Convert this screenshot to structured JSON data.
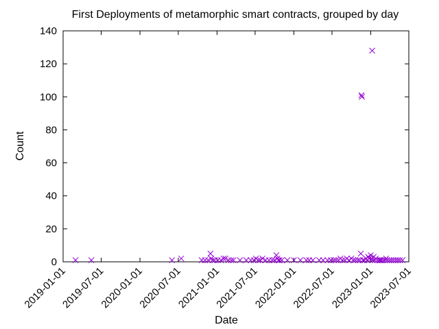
{
  "chart_data": {
    "type": "scatter",
    "title": "First Deployments of metamorphic smart contracts, grouped by day",
    "xlabel": "Date",
    "ylabel": "Count",
    "ylim": [
      0,
      140
    ],
    "yticks": [
      0,
      20,
      40,
      60,
      80,
      100,
      120,
      140
    ],
    "xlim": [
      "2019-01-01",
      "2023-07-01"
    ],
    "xticks": [
      "2019-01-01",
      "2019-07-01",
      "2020-01-01",
      "2020-07-01",
      "2021-01-01",
      "2021-07-01",
      "2022-01-01",
      "2022-07-01",
      "2023-01-01",
      "2023-07-01"
    ],
    "grid": false,
    "legend": "none",
    "marker": "x",
    "marker_color": "#9400D3",
    "series": [
      {
        "points": [
          [
            "2019-03-01",
            1
          ],
          [
            "2019-05-15",
            1
          ],
          [
            "2020-06-01",
            1
          ],
          [
            "2020-07-15",
            2
          ],
          [
            "2020-10-20",
            1
          ],
          [
            "2020-11-05",
            1
          ],
          [
            "2020-11-20",
            1
          ],
          [
            "2020-12-01",
            5
          ],
          [
            "2020-12-05",
            2
          ],
          [
            "2020-12-10",
            1
          ],
          [
            "2020-12-20",
            1
          ],
          [
            "2021-01-05",
            1
          ],
          [
            "2021-01-20",
            1
          ],
          [
            "2021-02-01",
            2
          ],
          [
            "2021-02-10",
            2
          ],
          [
            "2021-02-25",
            1
          ],
          [
            "2021-03-10",
            1
          ],
          [
            "2021-03-20",
            1
          ],
          [
            "2021-04-20",
            1
          ],
          [
            "2021-05-20",
            1
          ],
          [
            "2021-06-10",
            1
          ],
          [
            "2021-06-25",
            1
          ],
          [
            "2021-07-05",
            2
          ],
          [
            "2021-07-15",
            1
          ],
          [
            "2021-07-25",
            1
          ],
          [
            "2021-08-05",
            2
          ],
          [
            "2021-08-20",
            1
          ],
          [
            "2021-09-05",
            1
          ],
          [
            "2021-09-20",
            1
          ],
          [
            "2021-10-01",
            1
          ],
          [
            "2021-10-10",
            4
          ],
          [
            "2021-10-15",
            2
          ],
          [
            "2021-10-20",
            1
          ],
          [
            "2021-10-25",
            1
          ],
          [
            "2021-11-05",
            1
          ],
          [
            "2021-12-01",
            1
          ],
          [
            "2022-01-01",
            1
          ],
          [
            "2022-02-01",
            1
          ],
          [
            "2022-03-01",
            1
          ],
          [
            "2022-03-15",
            1
          ],
          [
            "2022-04-01",
            1
          ],
          [
            "2022-05-01",
            1
          ],
          [
            "2022-05-20",
            1
          ],
          [
            "2022-06-10",
            1
          ],
          [
            "2022-06-25",
            1
          ],
          [
            "2022-07-10",
            1
          ],
          [
            "2022-07-20",
            1
          ],
          [
            "2022-08-01",
            1
          ],
          [
            "2022-08-10",
            2
          ],
          [
            "2022-08-20",
            1
          ],
          [
            "2022-09-01",
            1
          ],
          [
            "2022-09-10",
            2
          ],
          [
            "2022-09-20",
            1
          ],
          [
            "2022-10-01",
            2
          ],
          [
            "2022-10-10",
            1
          ],
          [
            "2022-10-20",
            1
          ],
          [
            "2022-11-01",
            1
          ],
          [
            "2022-11-10",
            1
          ],
          [
            "2022-11-15",
            5
          ],
          [
            "2022-11-18",
            101
          ],
          [
            "2022-11-20",
            100
          ],
          [
            "2022-11-25",
            1
          ],
          [
            "2022-12-01",
            1
          ],
          [
            "2022-12-10",
            2
          ],
          [
            "2022-12-15",
            1
          ],
          [
            "2022-12-20",
            3
          ],
          [
            "2022-12-25",
            2
          ],
          [
            "2023-01-01",
            4
          ],
          [
            "2023-01-05",
            2
          ],
          [
            "2023-01-08",
            128
          ],
          [
            "2023-01-10",
            1
          ],
          [
            "2023-01-15",
            3
          ],
          [
            "2023-01-20",
            1
          ],
          [
            "2023-01-25",
            2
          ],
          [
            "2023-02-01",
            1
          ],
          [
            "2023-02-10",
            1
          ],
          [
            "2023-02-15",
            1
          ],
          [
            "2023-02-20",
            1
          ],
          [
            "2023-03-01",
            1
          ],
          [
            "2023-03-10",
            1
          ],
          [
            "2023-03-15",
            2
          ],
          [
            "2023-03-20",
            1
          ],
          [
            "2023-04-01",
            1
          ],
          [
            "2023-04-10",
            1
          ],
          [
            "2023-04-20",
            1
          ],
          [
            "2023-05-01",
            1
          ],
          [
            "2023-05-10",
            1
          ],
          [
            "2023-05-20",
            1
          ],
          [
            "2023-06-01",
            1
          ]
        ]
      }
    ]
  }
}
